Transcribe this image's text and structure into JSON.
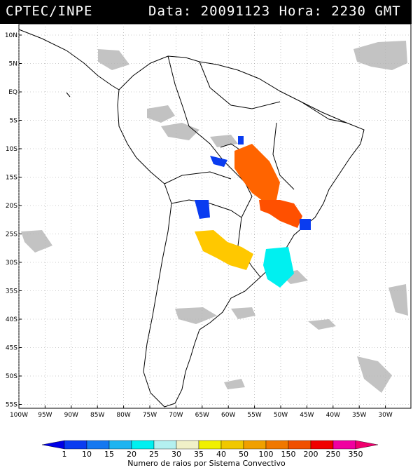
{
  "header": {
    "source": "CPTEC/INPE",
    "datetime": "Data: 20091123 Hora: 2230 GMT"
  },
  "map": {
    "lat_labels": [
      "10N",
      "5N",
      "EQ",
      "5S",
      "10S",
      "15S",
      "20S",
      "25S",
      "30S",
      "35S",
      "40S",
      "45S",
      "50S",
      "55S"
    ],
    "lon_labels": [
      "100W",
      "95W",
      "90W",
      "85W",
      "80W",
      "75W",
      "70W",
      "65W",
      "60W",
      "55W",
      "50W",
      "45W",
      "40W",
      "35W",
      "30W"
    ]
  },
  "colorbar": {
    "title": "Numero de raios por Sistema Convectivo",
    "labels": [
      "1",
      "10",
      "15",
      "20",
      "25",
      "30",
      "35",
      "40",
      "50",
      "100",
      "150",
      "200",
      "250",
      "350"
    ],
    "colors": [
      "#0000e6",
      "#0a3cf0",
      "#1478f0",
      "#1eb4f0",
      "#00f0f0",
      "#b4f0f0",
      "#f0f0c8",
      "#f0f000",
      "#f0c800",
      "#f0a000",
      "#f07800",
      "#f05000",
      "#f00000",
      "#f000a0",
      "#f0006e"
    ]
  },
  "legend_colors": {
    "orange": "#ff6400",
    "light_orange": "#ff8c00",
    "gold": "#ffc800",
    "cyan": "#00f0f0",
    "blue": "#0a32e6",
    "cloud_gray": "#b4b4b4"
  }
}
